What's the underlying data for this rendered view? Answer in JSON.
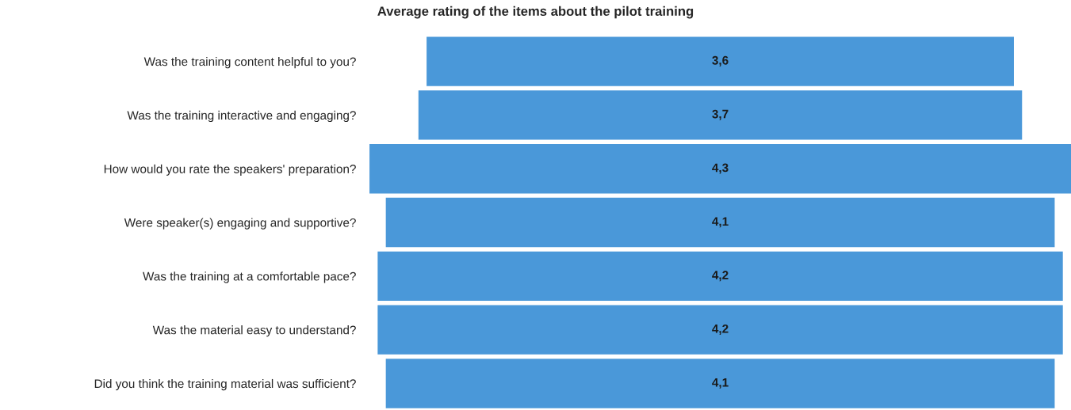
{
  "chart_data": {
    "type": "other",
    "title": "Average rating of the items about the pilot training",
    "categories": [
      "Was the training content helpful to you?",
      "Was the training interactive and engaging?",
      "How would you rate the speakers' preparation?",
      "Were speaker(s) engaging and supportive?",
      "Was the training at a comfortable pace?",
      "Was the material easy to understand?",
      "Did you think the training material was sufficient?"
    ],
    "values": [
      3.6,
      3.7,
      4.3,
      4.1,
      4.2,
      4.2,
      4.1
    ],
    "value_labels": [
      "3,6",
      "3,7",
      "4,3",
      "4,1",
      "4,2",
      "4,2",
      "4,1"
    ],
    "color": "#4a98d9"
  }
}
